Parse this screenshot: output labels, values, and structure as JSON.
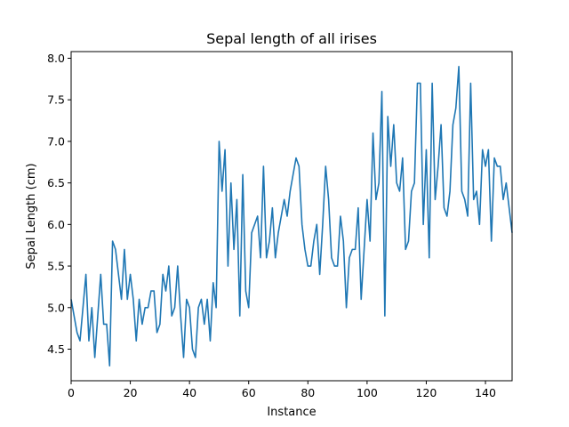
{
  "chart_data": {
    "type": "line",
    "title": "Sepal length of all irises",
    "xlabel": "Instance",
    "ylabel": "Sepal Length (cm)",
    "xlim": [
      0,
      149
    ],
    "ylim": [
      4.12,
      8.08
    ],
    "xticks": [
      0,
      20,
      40,
      60,
      80,
      100,
      120,
      140
    ],
    "yticks": [
      4.5,
      5.0,
      5.5,
      6.0,
      6.5,
      7.0,
      7.5,
      8.0
    ],
    "xtick_labels": [
      "0",
      "20",
      "40",
      "60",
      "80",
      "100",
      "120",
      "140"
    ],
    "ytick_labels": [
      "4.5",
      "5.0",
      "5.5",
      "6.0",
      "6.5",
      "7.0",
      "7.5",
      "8.0"
    ],
    "grid": false,
    "line_color": "#1f77b4",
    "series": [
      {
        "values": [
          5.1,
          4.9,
          4.7,
          4.6,
          5.0,
          5.4,
          4.6,
          5.0,
          4.4,
          4.9,
          5.4,
          4.8,
          4.8,
          4.3,
          5.8,
          5.7,
          5.4,
          5.1,
          5.7,
          5.1,
          5.4,
          5.1,
          4.6,
          5.1,
          4.8,
          5.0,
          5.0,
          5.2,
          5.2,
          4.7,
          4.8,
          5.4,
          5.2,
          5.5,
          4.9,
          5.0,
          5.5,
          4.9,
          4.4,
          5.1,
          5.0,
          4.5,
          4.4,
          5.0,
          5.1,
          4.8,
          5.1,
          4.6,
          5.3,
          5.0,
          7.0,
          6.4,
          6.9,
          5.5,
          6.5,
          5.7,
          6.3,
          4.9,
          6.6,
          5.2,
          5.0,
          5.9,
          6.0,
          6.1,
          5.6,
          6.7,
          5.6,
          5.8,
          6.2,
          5.6,
          5.9,
          6.1,
          6.3,
          6.1,
          6.4,
          6.6,
          6.8,
          6.7,
          6.0,
          5.7,
          5.5,
          5.5,
          5.8,
          6.0,
          5.4,
          6.0,
          6.7,
          6.3,
          5.6,
          5.5,
          5.5,
          6.1,
          5.8,
          5.0,
          5.6,
          5.7,
          5.7,
          6.2,
          5.1,
          5.7,
          6.3,
          5.8,
          7.1,
          6.3,
          6.5,
          7.6,
          4.9,
          7.3,
          6.7,
          7.2,
          6.5,
          6.4,
          6.8,
          5.7,
          5.8,
          6.4,
          6.5,
          7.7,
          7.7,
          6.0,
          6.9,
          5.6,
          7.7,
          6.3,
          6.7,
          7.2,
          6.2,
          6.1,
          6.4,
          7.2,
          7.4,
          7.9,
          6.4,
          6.3,
          6.1,
          7.7,
          6.3,
          6.4,
          6.0,
          6.9,
          6.7,
          6.9,
          5.8,
          6.8,
          6.7,
          6.7,
          6.3,
          6.5,
          6.2,
          5.9
        ]
      }
    ]
  }
}
